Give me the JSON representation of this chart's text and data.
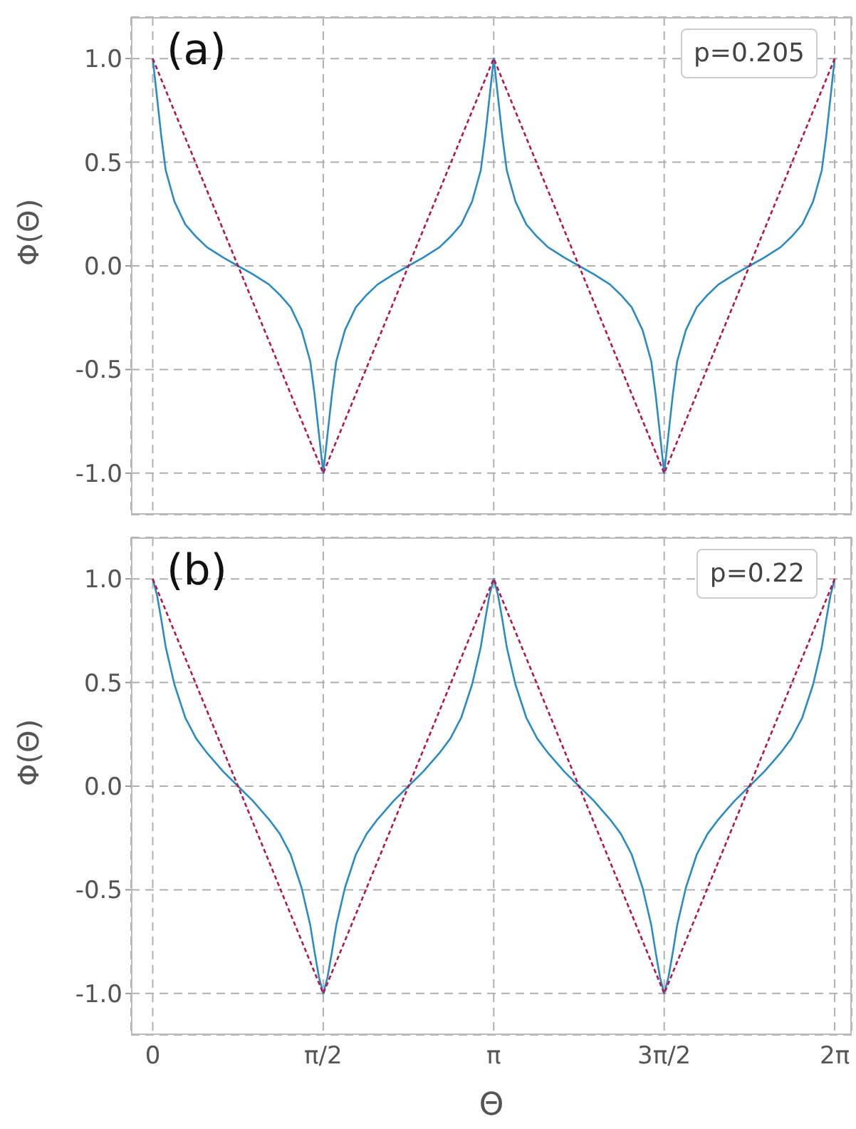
{
  "chart_data": [
    {
      "type": "line",
      "ylabel": "Φ(Θ)",
      "annotations": [
        "(a)",
        "p=0.205"
      ],
      "xlim": [
        -0.2,
        6.44
      ],
      "ylim": [
        -1.2,
        1.2
      ],
      "grid": true,
      "tick_labels": "y",
      "xticks": [
        {
          "value": 0,
          "label": null
        },
        {
          "value": 1.5708,
          "label": null
        },
        {
          "value": 3.1416,
          "label": null
        },
        {
          "value": 4.7124,
          "label": null
        },
        {
          "value": 6.2832,
          "label": null
        }
      ],
      "yticks": [
        {
          "value": -1,
          "label": "-1.0"
        },
        {
          "value": -0.5,
          "label": "-0.5"
        },
        {
          "value": 0,
          "label": "0.0"
        },
        {
          "value": 0.5,
          "label": "0.5"
        },
        {
          "value": 1,
          "label": "1.0"
        }
      ],
      "x": [
        0,
        0.04,
        0.08,
        0.12,
        0.2,
        0.3,
        0.4,
        0.5,
        0.65,
        0.785,
        0.921,
        1.071,
        1.171,
        1.271,
        1.371,
        1.451,
        1.491,
        1.531,
        1.571,
        1.611,
        1.651,
        1.691,
        1.771,
        1.871,
        1.971,
        2.071,
        2.221,
        2.356,
        2.492,
        2.642,
        2.742,
        2.842,
        2.942,
        3.022,
        3.062,
        3.102,
        3.142,
        3.182,
        3.222,
        3.262,
        3.342,
        3.442,
        3.542,
        3.642,
        3.792,
        3.927,
        4.063,
        4.213,
        4.313,
        4.413,
        4.513,
        4.593,
        4.633,
        4.673,
        4.712,
        4.752,
        4.792,
        4.832,
        4.912,
        5.012,
        5.112,
        5.212,
        5.362,
        5.498,
        5.634,
        5.784,
        5.884,
        5.984,
        6.084,
        6.164,
        6.204,
        6.244,
        6.283
      ],
      "series": [
        {
          "color": "#2b8cc4",
          "line_style": "solid",
          "values": [
            1,
            0.81,
            0.62,
            0.46,
            0.31,
            0.2,
            0.14,
            0.09,
            0.04,
            0,
            -0.04,
            -0.09,
            -0.14,
            -0.2,
            -0.31,
            -0.46,
            -0.62,
            -0.81,
            -1,
            -0.81,
            -0.62,
            -0.46,
            -0.31,
            -0.2,
            -0.14,
            -0.09,
            -0.04,
            0,
            0.04,
            0.09,
            0.14,
            0.2,
            0.31,
            0.46,
            0.62,
            0.81,
            1,
            0.81,
            0.62,
            0.46,
            0.31,
            0.2,
            0.14,
            0.09,
            0.04,
            0,
            -0.04,
            -0.09,
            -0.14,
            -0.2,
            -0.31,
            -0.46,
            -0.62,
            -0.81,
            -1,
            -0.81,
            -0.62,
            -0.46,
            -0.31,
            -0.2,
            -0.14,
            -0.09,
            -0.04,
            0,
            0.04,
            0.09,
            0.14,
            0.2,
            0.31,
            0.46,
            0.62,
            0.81,
            1
          ]
        },
        {
          "color": "#b5174a",
          "line_style": "dashed",
          "x": [
            0,
            1.5708,
            3.1416,
            4.7124,
            6.2832
          ],
          "values": [
            1,
            -1,
            1,
            -1,
            1
          ]
        }
      ]
    },
    {
      "type": "line",
      "ylabel": "Φ(Θ)",
      "xlabel": "Θ",
      "annotations": [
        "(b)",
        "p=0.22"
      ],
      "xlim": [
        -0.2,
        6.44
      ],
      "ylim": [
        -1.2,
        1.2
      ],
      "grid": true,
      "xticks": [
        {
          "value": 0,
          "label": "0"
        },
        {
          "value": 1.5708,
          "label": "π/2"
        },
        {
          "value": 3.1416,
          "label": "π"
        },
        {
          "value": 4.7124,
          "label": "3π/2"
        },
        {
          "value": 6.2832,
          "label": "2π"
        }
      ],
      "yticks": [
        {
          "value": -1,
          "label": "-1.0"
        },
        {
          "value": -0.5,
          "label": "-0.5"
        },
        {
          "value": 0,
          "label": "0.0"
        },
        {
          "value": 0.5,
          "label": "0.5"
        },
        {
          "value": 1,
          "label": "1.0"
        }
      ],
      "x": [
        0,
        0.04,
        0.08,
        0.12,
        0.2,
        0.3,
        0.4,
        0.5,
        0.65,
        0.785,
        0.921,
        1.071,
        1.171,
        1.271,
        1.371,
        1.451,
        1.491,
        1.531,
        1.571,
        1.611,
        1.651,
        1.691,
        1.771,
        1.871,
        1.971,
        2.071,
        2.221,
        2.356,
        2.492,
        2.642,
        2.742,
        2.842,
        2.942,
        3.022,
        3.062,
        3.102,
        3.142,
        3.182,
        3.222,
        3.262,
        3.342,
        3.442,
        3.542,
        3.642,
        3.792,
        3.927,
        4.063,
        4.213,
        4.313,
        4.413,
        4.513,
        4.593,
        4.633,
        4.673,
        4.712,
        4.752,
        4.792,
        4.832,
        4.912,
        5.012,
        5.112,
        5.212,
        5.362,
        5.498,
        5.634,
        5.784,
        5.884,
        5.984,
        6.084,
        6.164,
        6.204,
        6.244,
        6.283
      ],
      "series": [
        {
          "color": "#2b8cc4",
          "line_style": "solid",
          "values": [
            1,
            0.92,
            0.8,
            0.67,
            0.49,
            0.33,
            0.23,
            0.16,
            0.07,
            0,
            -0.07,
            -0.16,
            -0.23,
            -0.33,
            -0.49,
            -0.67,
            -0.8,
            -0.92,
            -1,
            -0.92,
            -0.8,
            -0.67,
            -0.49,
            -0.33,
            -0.23,
            -0.16,
            -0.07,
            0,
            0.07,
            0.16,
            0.23,
            0.33,
            0.49,
            0.67,
            0.8,
            0.92,
            1,
            0.92,
            0.8,
            0.67,
            0.49,
            0.33,
            0.23,
            0.16,
            0.07,
            0,
            -0.07,
            -0.16,
            -0.23,
            -0.33,
            -0.49,
            -0.67,
            -0.8,
            -0.92,
            -1,
            -0.92,
            -0.8,
            -0.67,
            -0.49,
            -0.33,
            -0.23,
            -0.16,
            -0.07,
            0,
            0.07,
            0.16,
            0.23,
            0.33,
            0.49,
            0.67,
            0.8,
            0.92,
            1
          ]
        },
        {
          "color": "#b5174a",
          "line_style": "dashed",
          "x": [
            0,
            1.5708,
            3.1416,
            4.7124,
            6.2832
          ],
          "values": [
            1,
            -1,
            1,
            -1,
            1
          ]
        }
      ]
    }
  ]
}
